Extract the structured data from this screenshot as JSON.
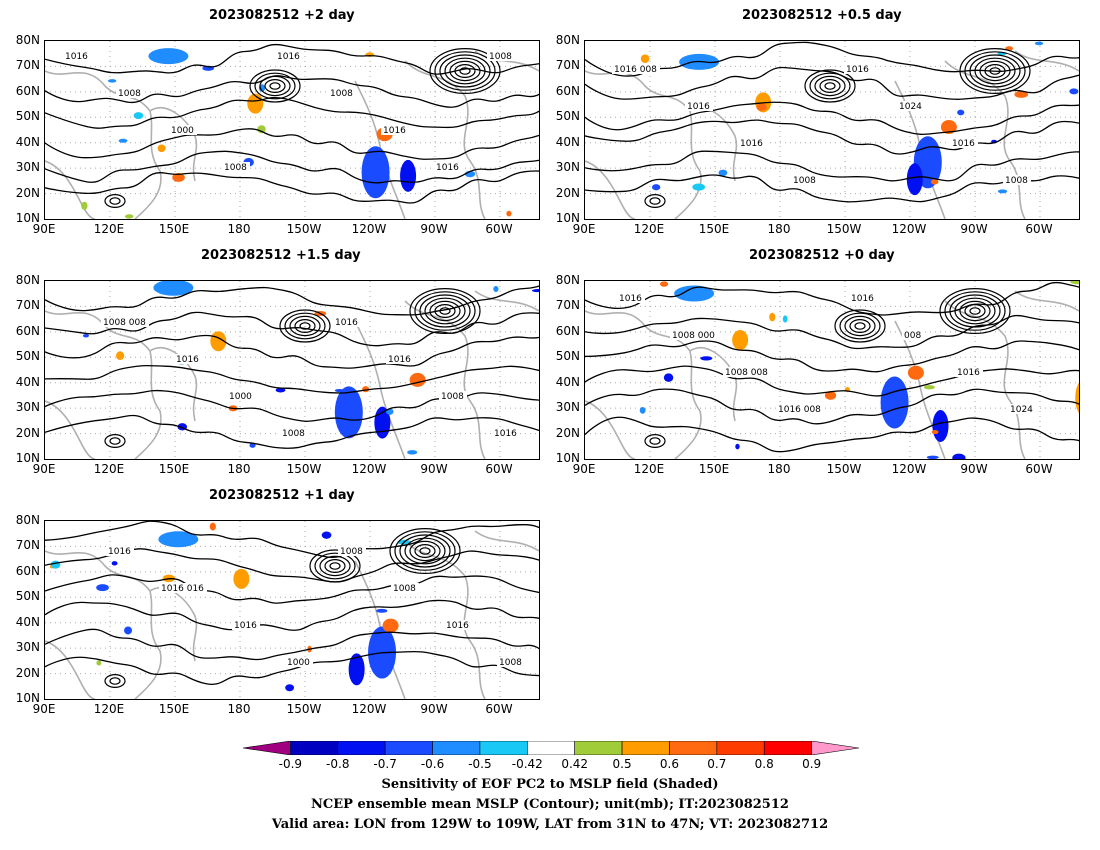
{
  "panels": [
    {
      "id": "p2",
      "title": "2023082512 +2 day",
      "labels": [
        "1016",
        "1008",
        "1000",
        "1008",
        "1016",
        "1008",
        "1016",
        "1016",
        "1008"
      ]
    },
    {
      "id": "p05",
      "title": "2023082512 +0.5 day",
      "labels": [
        "1008",
        "1016",
        "1016",
        "1008",
        "1016",
        "1024",
        "1016",
        "1008",
        "1016"
      ]
    },
    {
      "id": "p15",
      "title": "2023082512 +1.5 day",
      "labels": [
        "1008",
        "1016",
        "1000",
        "1008",
        "1016",
        "1016",
        "1008",
        "1016",
        "1008"
      ]
    },
    {
      "id": "p0",
      "title": "2023082512 +0 day",
      "labels": [
        "1000",
        "1008",
        "1008",
        "1016",
        "008",
        "1016",
        "1024",
        "1016",
        "1008",
        "1008",
        "1016"
      ]
    },
    {
      "id": "p1",
      "title": "2023082512 +1 day",
      "labels": [
        "1016",
        "1016",
        "1000",
        "1008",
        "1008",
        "1016",
        "1008",
        "1016",
        "1016"
      ]
    }
  ],
  "lat_ticks": [
    "80N",
    "70N",
    "60N",
    "50N",
    "40N",
    "30N",
    "20N",
    "10N"
  ],
  "lon_ticks": [
    "90E",
    "120E",
    "150E",
    "180",
    "150W",
    "120W",
    "90W",
    "60W"
  ],
  "colorbar": {
    "colors": [
      "#a0007f",
      "#0000c0",
      "#0010f0",
      "#1a4bff",
      "#1f8cff",
      "#19c8f5",
      "#ffffff",
      "#a0cc3a",
      "#ff9c00",
      "#ff6a10",
      "#ff3c00",
      "#ff0000",
      "#ff99cc"
    ],
    "labels": [
      "-0.9",
      "-0.8",
      "-0.7",
      "-0.6",
      "-0.5",
      "-0.42",
      "0.42",
      "0.5",
      "0.6",
      "0.7",
      "0.8",
      "0.9"
    ]
  },
  "caption": {
    "line1": "Sensitivity of EOF PC2 to MSLP field (Shaded)",
    "line2": "NCEP ensemble mean MSLP (Contour); unit(mb); IT:2023082512",
    "line3": "Valid area: LON from 129W to 109W, LAT from 31N to 47N; VT: 2023082712"
  }
}
